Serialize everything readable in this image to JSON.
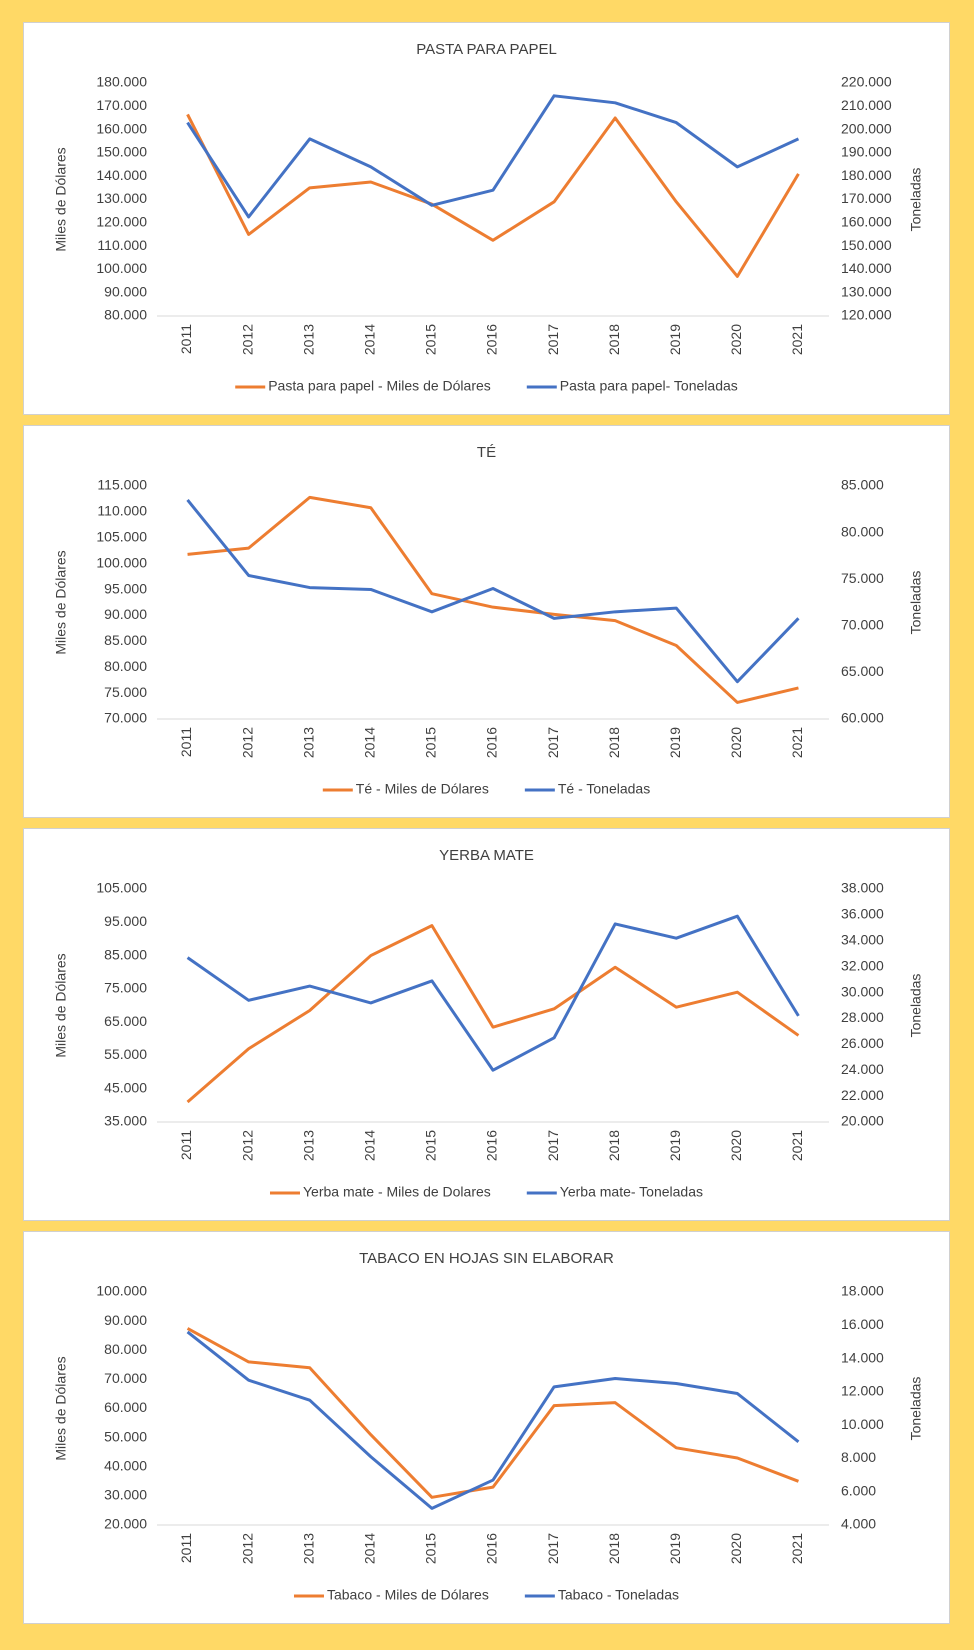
{
  "chart_data": [
    {
      "type": "line",
      "title": "PASTA PARA PAPEL",
      "y_label": "Miles de Dólares",
      "y2_label": "Toneladas",
      "categories": [
        "2011",
        "2012",
        "2013",
        "2014",
        "2015",
        "2016",
        "2017",
        "2018",
        "2019",
        "2020",
        "2021"
      ],
      "series": [
        {
          "name": "Pasta para papel - Miles de Dólares",
          "color": "#ED7D31",
          "values": [
            166500,
            115000,
            135000,
            137500,
            128000,
            112500,
            129000,
            165000,
            129000,
            97000,
            141000
          ]
        },
        {
          "name": "Pasta para papel- Toneladas",
          "color": "#4472C4",
          "axis": "y2",
          "values": [
            203000,
            162500,
            196000,
            184000,
            167500,
            174000,
            214500,
            211500,
            203000,
            184000,
            196000
          ]
        }
      ],
      "ylim": [
        80000,
        180000
      ],
      "yticks": [
        {
          "value": 80000,
          "label": "80.000"
        },
        {
          "value": 90000,
          "label": "90.000"
        },
        {
          "value": 100000,
          "label": "100.000"
        },
        {
          "value": 110000,
          "label": "110.000"
        },
        {
          "value": 120000,
          "label": "120.000"
        },
        {
          "value": 130000,
          "label": "130.000"
        },
        {
          "value": 140000,
          "label": "140.000"
        },
        {
          "value": 150000,
          "label": "150.000"
        },
        {
          "value": 160000,
          "label": "160.000"
        },
        {
          "value": 170000,
          "label": "170.000"
        },
        {
          "value": 180000,
          "label": "180.000"
        }
      ],
      "y2lim": [
        120000,
        220000
      ],
      "y2ticks": [
        {
          "value": 120000,
          "label": "120.000"
        },
        {
          "value": 130000,
          "label": "130.000"
        },
        {
          "value": 140000,
          "label": "140.000"
        },
        {
          "value": 150000,
          "label": "150.000"
        },
        {
          "value": 160000,
          "label": "160.000"
        },
        {
          "value": 170000,
          "label": "170.000"
        },
        {
          "value": 180000,
          "label": "180.000"
        },
        {
          "value": 190000,
          "label": "190.000"
        },
        {
          "value": 200000,
          "label": "200.000"
        },
        {
          "value": 210000,
          "label": "210.000"
        },
        {
          "value": 220000,
          "label": "220.000"
        }
      ]
    },
    {
      "type": "line",
      "title": "TÉ",
      "y_label": "Miles de Dólares",
      "y2_label": "Toneladas",
      "categories": [
        "2011",
        "2012",
        "2013",
        "2014",
        "2015",
        "2016",
        "2017",
        "2018",
        "2019",
        "2020",
        "2021"
      ],
      "series": [
        {
          "name": "Té - Miles de Dólares",
          "color": "#ED7D31",
          "values": [
            101800,
            103000,
            112800,
            110800,
            94200,
            91600,
            90200,
            89000,
            84200,
            73200,
            76000
          ]
        },
        {
          "name": "Té - Toneladas",
          "color": "#4472C4",
          "axis": "y2",
          "values": [
            83500,
            75400,
            74100,
            73900,
            71500,
            74000,
            70800,
            71500,
            71900,
            64000,
            70800
          ]
        }
      ],
      "ylim": [
        70000,
        115000
      ],
      "yticks": [
        {
          "value": 70000,
          "label": "70.000"
        },
        {
          "value": 75000,
          "label": "75.000"
        },
        {
          "value": 80000,
          "label": "80.000"
        },
        {
          "value": 85000,
          "label": "85.000"
        },
        {
          "value": 90000,
          "label": "90.000"
        },
        {
          "value": 95000,
          "label": "95.000"
        },
        {
          "value": 100000,
          "label": "100.000"
        },
        {
          "value": 105000,
          "label": "105.000"
        },
        {
          "value": 110000,
          "label": "110.000"
        },
        {
          "value": 115000,
          "label": "115.000"
        }
      ],
      "y2lim": [
        60000,
        85000
      ],
      "y2ticks": [
        {
          "value": 60000,
          "label": "60.000"
        },
        {
          "value": 65000,
          "label": "65.000"
        },
        {
          "value": 70000,
          "label": "70.000"
        },
        {
          "value": 75000,
          "label": "75.000"
        },
        {
          "value": 80000,
          "label": "80.000"
        },
        {
          "value": 85000,
          "label": "85.000"
        }
      ]
    },
    {
      "type": "line",
      "title": "YERBA MATE",
      "y_label": "Miles de Dólares",
      "y2_label": "Toneladas",
      "categories": [
        "2011",
        "2012",
        "2013",
        "2014",
        "2015",
        "2016",
        "2017",
        "2018",
        "2019",
        "2020",
        "2021"
      ],
      "series": [
        {
          "name": "Yerba mate - Miles de Dolares",
          "color": "#ED7D31",
          "values": [
            41000,
            57000,
            68500,
            85000,
            94000,
            63500,
            69000,
            81500,
            69500,
            74000,
            61000
          ]
        },
        {
          "name": "Yerba mate- Toneladas",
          "color": "#4472C4",
          "axis": "y2",
          "values": [
            32700,
            29400,
            30500,
            29200,
            30900,
            24000,
            26500,
            35300,
            34200,
            35900,
            28200
          ]
        }
      ],
      "ylim": [
        35000,
        105000
      ],
      "yticks": [
        {
          "value": 35000,
          "label": "35.000"
        },
        {
          "value": 45000,
          "label": "45.000"
        },
        {
          "value": 55000,
          "label": "55.000"
        },
        {
          "value": 65000,
          "label": "65.000"
        },
        {
          "value": 75000,
          "label": "75.000"
        },
        {
          "value": 85000,
          "label": "85.000"
        },
        {
          "value": 95000,
          "label": "95.000"
        },
        {
          "value": 105000,
          "label": "105.000"
        }
      ],
      "y2lim": [
        20000,
        38000
      ],
      "y2ticks": [
        {
          "value": 20000,
          "label": "20.000"
        },
        {
          "value": 22000,
          "label": "22.000"
        },
        {
          "value": 24000,
          "label": "24.000"
        },
        {
          "value": 26000,
          "label": "26.000"
        },
        {
          "value": 28000,
          "label": "28.000"
        },
        {
          "value": 30000,
          "label": "30.000"
        },
        {
          "value": 32000,
          "label": "32.000"
        },
        {
          "value": 34000,
          "label": "34.000"
        },
        {
          "value": 36000,
          "label": "36.000"
        },
        {
          "value": 38000,
          "label": "38.000"
        }
      ]
    },
    {
      "type": "line",
      "title": "TABACO EN HOJAS SIN ELABORAR",
      "y_label": "Miles de Dólares",
      "y2_label": "Toneladas",
      "categories": [
        "2011",
        "2012",
        "2013",
        "2014",
        "2015",
        "2016",
        "2017",
        "2018",
        "2019",
        "2020",
        "2021"
      ],
      "series": [
        {
          "name": "Tabaco - Miles de Dólares",
          "color": "#ED7D31",
          "values": [
            87500,
            76000,
            74000,
            51000,
            29500,
            33000,
            61000,
            62000,
            46500,
            43000,
            35000
          ]
        },
        {
          "name": "Tabaco - Toneladas",
          "color": "#4472C4",
          "axis": "y2",
          "values": [
            15600,
            12700,
            11500,
            8100,
            5000,
            6700,
            12300,
            12800,
            12500,
            11900,
            9000
          ]
        }
      ],
      "ylim": [
        20000,
        100000
      ],
      "yticks": [
        {
          "value": 20000,
          "label": "20.000"
        },
        {
          "value": 30000,
          "label": "30.000"
        },
        {
          "value": 40000,
          "label": "40.000"
        },
        {
          "value": 50000,
          "label": "50.000"
        },
        {
          "value": 60000,
          "label": "60.000"
        },
        {
          "value": 70000,
          "label": "70.000"
        },
        {
          "value": 80000,
          "label": "80.000"
        },
        {
          "value": 90000,
          "label": "90.000"
        },
        {
          "value": 100000,
          "label": "100.000"
        }
      ],
      "y2lim": [
        4000,
        18000
      ],
      "y2ticks": [
        {
          "value": 4000,
          "label": "4.000"
        },
        {
          "value": 6000,
          "label": "6.000"
        },
        {
          "value": 8000,
          "label": "8.000"
        },
        {
          "value": 10000,
          "label": "10.000"
        },
        {
          "value": 12000,
          "label": "12.000"
        },
        {
          "value": 14000,
          "label": "14.000"
        },
        {
          "value": 16000,
          "label": "16.000"
        },
        {
          "value": 18000,
          "label": "18.000"
        }
      ]
    }
  ]
}
